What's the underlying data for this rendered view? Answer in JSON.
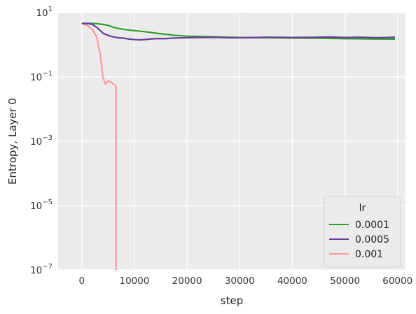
{
  "chart_data": {
    "type": "line",
    "xlabel": "step",
    "ylabel": "Entropy, Layer 0",
    "yscale": "log",
    "xlim": [
      -4500,
      61500
    ],
    "ylim": [
      1e-07,
      10
    ],
    "x_ticks": [
      0,
      10000,
      20000,
      30000,
      40000,
      50000,
      60000
    ],
    "x_tick_labels": [
      "0",
      "10000",
      "20000",
      "30000",
      "40000",
      "50000",
      "60000"
    ],
    "y_ticks": [
      1e-07,
      1e-05,
      0.001,
      0.1,
      10
    ],
    "y_tick_labels": [
      {
        "base": "10",
        "exp": "−7"
      },
      {
        "base": "10",
        "exp": "−5"
      },
      {
        "base": "10",
        "exp": "−3"
      },
      {
        "base": "10",
        "exp": "−1"
      },
      {
        "base": "10",
        "exp": "1"
      }
    ],
    "grid": true,
    "legend_title": "lr",
    "legend_position": "lower-right",
    "series": [
      {
        "name": "0.0001",
        "color": "#2ca02c",
        "x": [
          0,
          1000,
          2000,
          3000,
          4000,
          5000,
          6000,
          7000,
          8000,
          9000,
          10000,
          12000,
          14000,
          16000,
          18000,
          20000,
          23000,
          26000,
          30000,
          35000,
          40000,
          45000,
          50000,
          55000,
          59500
        ],
        "y": [
          4.6,
          4.6,
          4.6,
          4.5,
          4.3,
          4.0,
          3.5,
          3.2,
          3.0,
          2.85,
          2.75,
          2.55,
          2.3,
          2.1,
          1.95,
          1.85,
          1.8,
          1.75,
          1.68,
          1.65,
          1.62,
          1.6,
          1.55,
          1.52,
          1.5
        ]
      },
      {
        "name": "0.0005",
        "color": "#6a3d9a",
        "x": [
          0,
          1000,
          2000,
          3000,
          4000,
          5000,
          6000,
          7000,
          8000,
          9000,
          10000,
          11000,
          12000,
          13000,
          14000,
          15000,
          16000,
          17000,
          18000,
          20000,
          22000,
          25000,
          28000,
          30000,
          33000,
          36000,
          40000,
          44000,
          47000,
          50000,
          53000,
          56000,
          59500
        ],
        "y": [
          4.6,
          4.6,
          4.3,
          3.3,
          2.3,
          1.95,
          1.75,
          1.65,
          1.6,
          1.5,
          1.45,
          1.42,
          1.45,
          1.5,
          1.55,
          1.55,
          1.55,
          1.6,
          1.62,
          1.65,
          1.68,
          1.7,
          1.65,
          1.65,
          1.68,
          1.72,
          1.68,
          1.7,
          1.75,
          1.68,
          1.72,
          1.65,
          1.7
        ]
      },
      {
        "name": "0.001",
        "color": "#ff9896",
        "x": [
          0,
          1000,
          2000,
          2800,
          3500,
          4000,
          4500,
          5000,
          5500,
          6000,
          6400,
          6500,
          6500
        ],
        "y": [
          4.6,
          4.0,
          3.0,
          1.8,
          0.5,
          0.1,
          0.06,
          0.075,
          0.07,
          0.06,
          0.055,
          0.05,
          1e-07
        ]
      }
    ]
  }
}
